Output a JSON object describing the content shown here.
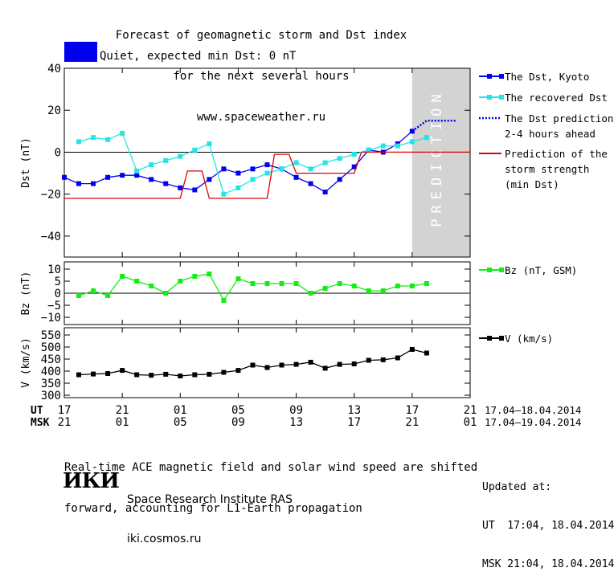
{
  "title_lines": [
    "Forecast of geomagnetic storm and Dst index",
    "for the next several hours",
    "www.spaceweather.ru"
  ],
  "status": {
    "quiet_text": "Quiet, expected min Dst: 0 nT",
    "quiet_color": "#0000ee"
  },
  "colors": {
    "dst_kyoto": "#0000ee",
    "dst_recovered": "#22e5e5",
    "dst_prediction": "#0000ee",
    "storm_strength": "#dd0000",
    "bz": "#11ee11",
    "v": "#000000",
    "prediction_zone": "#d3d3d3"
  },
  "chart_data": [
    {
      "type": "line",
      "ylabel": "Dst (nT)",
      "ylim": [
        -50,
        40
      ],
      "yticks": [
        "40",
        "20",
        "0",
        "−20",
        "−40"
      ],
      "ytick_values": [
        40,
        20,
        0,
        -20,
        -40
      ],
      "xlim_hours_from_17UT": [
        0,
        28
      ],
      "prediction_zone_text": "PREDICTION",
      "prediction_zone_hours": [
        24,
        28
      ],
      "zero_line": true,
      "series": [
        {
          "name": "The Dst, Kyoto",
          "style": "solid-square",
          "x": [
            0,
            1,
            2,
            3,
            4,
            5,
            6,
            7,
            8,
            9,
            10,
            11,
            12,
            13,
            14,
            15,
            16,
            17,
            18,
            19,
            20,
            21,
            22,
            23,
            24
          ],
          "y": [
            -12,
            -15,
            -15,
            -12,
            -11,
            -11,
            -13,
            -15,
            -17,
            -18,
            -13,
            -8,
            -10,
            -8,
            -6,
            -8,
            -12,
            -15,
            -19,
            -13,
            -7,
            1,
            0,
            4,
            10
          ]
        },
        {
          "name": "The recovered Dst",
          "style": "solid-square",
          "x": [
            1,
            2,
            3,
            4,
            5,
            6,
            7,
            8,
            9,
            10,
            11,
            12,
            13,
            14,
            15,
            16,
            17,
            18,
            19,
            20,
            21,
            22,
            23,
            24,
            25
          ],
          "y": [
            5,
            7,
            6,
            9,
            -9,
            -6,
            -4,
            -2,
            1,
            4,
            -20,
            -17,
            -13,
            -10,
            -8,
            -5,
            -8,
            -5,
            -3,
            -1,
            1,
            3,
            3,
            5,
            7
          ]
        },
        {
          "name": "The Dst prediction\n2-4 hours ahead",
          "style": "dotted",
          "x": [
            24,
            25,
            26,
            27
          ],
          "y": [
            10,
            15,
            15,
            15
          ]
        },
        {
          "name": "Prediction of the\nstorm strength\n(min Dst)",
          "style": "solid",
          "x": [
            0,
            1,
            2,
            3,
            4,
            5,
            6,
            7,
            8,
            8.5,
            9,
            9.5,
            10,
            11,
            12,
            13,
            14,
            14.5,
            15,
            15.5,
            16,
            17,
            18,
            19,
            19.5,
            20,
            20.5,
            21,
            28
          ],
          "y": [
            -22,
            -22,
            -22,
            -22,
            -22,
            -22,
            -22,
            -22,
            -22,
            -9,
            -9,
            -9,
            -22,
            -22,
            -22,
            -22,
            -22,
            -1,
            -1,
            -1,
            -10,
            -10,
            -10,
            -10,
            -10,
            -10,
            0,
            0,
            0
          ]
        }
      ]
    },
    {
      "type": "line",
      "ylabel": "Bz (nT)",
      "ylim": [
        -13,
        13
      ],
      "yticks": [
        "10",
        "5",
        "0",
        "−5",
        "−10"
      ],
      "ytick_values": [
        10,
        5,
        0,
        -5,
        -10
      ],
      "zero_line": true,
      "series": [
        {
          "name": "Bz (nT, GSM)",
          "style": "solid-square",
          "x": [
            1,
            2,
            3,
            4,
            5,
            6,
            7,
            8,
            9,
            10,
            11,
            12,
            13,
            14,
            15,
            16,
            17,
            18,
            19,
            20,
            21,
            22,
            23,
            24,
            25
          ],
          "y": [
            -1,
            1,
            -1,
            7,
            5,
            3,
            0,
            5,
            7,
            8,
            -3,
            6,
            4,
            4,
            4,
            4,
            0,
            2,
            4,
            3,
            1,
            1,
            3,
            3,
            4
          ]
        }
      ]
    },
    {
      "type": "line",
      "ylabel": "V (km/s)",
      "ylim": [
        290,
        580
      ],
      "yticks": [
        "550",
        "500",
        "450",
        "400",
        "350",
        "300"
      ],
      "ytick_values": [
        550,
        500,
        450,
        400,
        350,
        300
      ],
      "series": [
        {
          "name": "V (km/s)",
          "style": "solid-square",
          "x": [
            1,
            2,
            3,
            4,
            5,
            6,
            7,
            8,
            9,
            10,
            11,
            12,
            13,
            14,
            15,
            16,
            17,
            18,
            19,
            20,
            21,
            22,
            23,
            24,
            25
          ],
          "y": [
            385,
            388,
            390,
            403,
            385,
            383,
            387,
            380,
            385,
            387,
            395,
            403,
            425,
            415,
            425,
            428,
            437,
            412,
            428,
            430,
            445,
            447,
            455,
            490,
            475
          ]
        }
      ]
    }
  ],
  "time_axis": {
    "ut_label": "UT",
    "msk_label": "MSK",
    "ut_ticks": [
      "17",
      "21",
      "01",
      "05",
      "09",
      "13",
      "17",
      "21"
    ],
    "msk_ticks": [
      "21",
      "01",
      "05",
      "09",
      "13",
      "17",
      "21",
      "01"
    ],
    "tick_hours": [
      0,
      4,
      8,
      12,
      16,
      20,
      24,
      28
    ],
    "ut_range": "17.04–18.04.2014",
    "msk_range": "17.04–19.04.2014"
  },
  "footer": {
    "note_lines": [
      "Real-time ACE magnetic field and solar wind speed are shifted",
      "forward, accounting for L1-Earth propagation"
    ],
    "logo_text": "ИКИ",
    "institute": "Space Research Institute RAS",
    "site": "iki.cosmos.ru",
    "updated_label": "Updated at:",
    "updated_ut": "UT  17:04, 18.04.2014",
    "updated_msk": "MSK 21:04, 18.04.2014"
  }
}
